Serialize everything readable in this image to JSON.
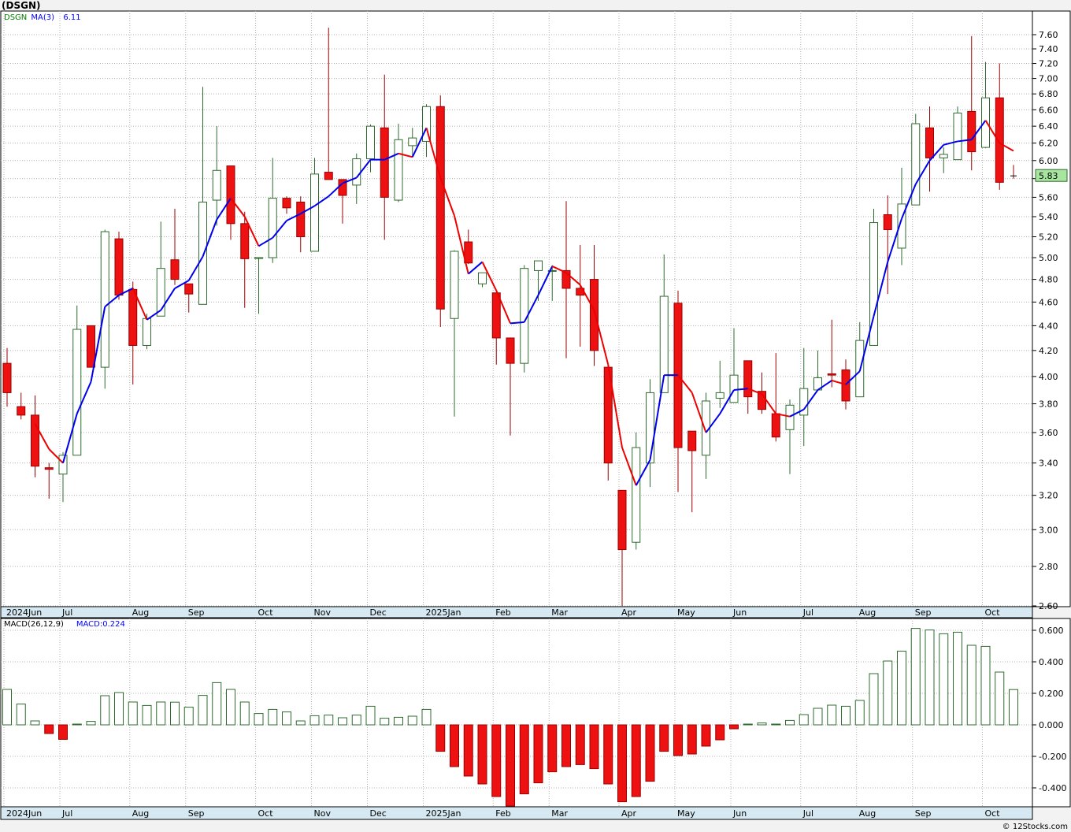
{
  "header": {
    "symbol_title": "(DSGN)",
    "credit": "© 12Stocks.com"
  },
  "chart_data": [
    {
      "type": "candlestick",
      "panel": "price",
      "legend": [
        {
          "text": "DSGN",
          "color": "#008000"
        },
        {
          "text": "MA(3)",
          "color": "#0000ff"
        },
        {
          "text": "6.11",
          "color": "#0000ff"
        }
      ],
      "last_price_label": "5.83",
      "y_ticks": [
        "7.60",
        "7.40",
        "7.20",
        "7.00",
        "6.80",
        "6.60",
        "6.40",
        "6.20",
        "6.00",
        "5.80",
        "5.60",
        "5.40",
        "5.20",
        "5.00",
        "4.80",
        "4.60",
        "4.40",
        "4.20",
        "4.00",
        "3.80",
        "3.60",
        "3.40",
        "3.20",
        "3.00",
        "2.80",
        "2.60"
      ],
      "ylim": [
        2.6,
        7.6
      ],
      "log_scale": true,
      "x_ticks": [
        "2024Jun",
        "Jul",
        "Aug",
        "Sep",
        "Oct",
        "Nov",
        "Dec",
        "2025Jan",
        "Feb",
        "Mar",
        "Apr",
        "May",
        "Jun",
        "Jul",
        "Aug",
        "Sep",
        "Oct"
      ],
      "x_tick_week_index": [
        0,
        4,
        9,
        13,
        18,
        22,
        26,
        30,
        35,
        39,
        44,
        48,
        52,
        57,
        61,
        65,
        70
      ],
      "ohlc": [
        [
          4.1,
          4.22,
          3.78,
          3.88
        ],
        [
          3.78,
          3.88,
          3.69,
          3.72
        ],
        [
          3.72,
          3.86,
          3.31,
          3.38
        ],
        [
          3.37,
          3.4,
          3.18,
          3.36
        ],
        [
          3.33,
          3.47,
          3.16,
          3.45
        ],
        [
          3.45,
          4.57,
          3.45,
          4.37
        ],
        [
          4.4,
          4.4,
          4.07,
          4.07
        ],
        [
          4.07,
          5.27,
          3.91,
          5.25
        ],
        [
          5.18,
          5.25,
          4.62,
          4.66
        ],
        [
          4.71,
          4.78,
          3.94,
          4.24
        ],
        [
          4.24,
          4.5,
          4.21,
          4.46
        ],
        [
          4.48,
          5.35,
          4.48,
          4.9
        ],
        [
          4.98,
          5.48,
          4.75,
          4.8
        ],
        [
          4.76,
          4.76,
          4.51,
          4.67
        ],
        [
          4.58,
          6.89,
          4.58,
          5.55
        ],
        [
          5.57,
          6.4,
          5.31,
          5.89
        ],
        [
          5.94,
          5.94,
          5.17,
          5.33
        ],
        [
          5.33,
          5.45,
          4.55,
          4.99
        ],
        [
          5.0,
          5.0,
          4.5,
          5.0
        ],
        [
          5.0,
          6.03,
          4.95,
          5.59
        ],
        [
          5.59,
          5.61,
          5.43,
          5.49
        ],
        [
          5.55,
          5.61,
          5.05,
          5.2
        ],
        [
          5.06,
          6.03,
          5.06,
          5.85
        ],
        [
          5.87,
          7.7,
          5.8,
          5.79
        ],
        [
          5.79,
          5.79,
          5.33,
          5.62
        ],
        [
          5.73,
          6.08,
          5.53,
          6.02
        ],
        [
          6.02,
          6.42,
          5.87,
          6.4
        ],
        [
          6.38,
          7.05,
          5.17,
          5.6
        ],
        [
          5.57,
          6.43,
          5.55,
          6.24
        ],
        [
          6.17,
          6.38,
          6.04,
          6.26
        ],
        [
          6.22,
          6.67,
          6.04,
          6.64
        ],
        [
          6.64,
          6.78,
          4.39,
          4.54
        ],
        [
          4.46,
          5.07,
          3.71,
          5.06
        ],
        [
          5.15,
          5.27,
          4.94,
          4.95
        ],
        [
          4.76,
          4.86,
          4.73,
          4.86
        ],
        [
          4.68,
          4.68,
          4.09,
          4.3
        ],
        [
          4.3,
          4.3,
          3.58,
          4.1
        ],
        [
          4.1,
          4.93,
          4.03,
          4.9
        ],
        [
          4.88,
          4.96,
          4.61,
          4.97
        ],
        [
          4.88,
          4.93,
          4.61,
          4.88
        ],
        [
          4.88,
          5.56,
          4.14,
          4.72
        ],
        [
          4.72,
          5.12,
          4.23,
          4.66
        ],
        [
          4.8,
          5.12,
          4.08,
          4.2
        ],
        [
          4.07,
          4.08,
          3.29,
          3.4
        ],
        [
          3.23,
          3.23,
          2.6,
          2.89
        ],
        [
          2.93,
          3.6,
          2.89,
          3.5
        ],
        [
          3.4,
          3.98,
          3.25,
          3.88
        ],
        [
          3.88,
          5.03,
          3.9,
          4.65
        ],
        [
          4.59,
          4.7,
          3.22,
          3.5
        ],
        [
          3.61,
          3.61,
          3.1,
          3.48
        ],
        [
          3.45,
          3.88,
          3.3,
          3.82
        ],
        [
          3.84,
          4.12,
          3.77,
          3.88
        ],
        [
          3.81,
          4.38,
          3.81,
          4.01
        ],
        [
          4.12,
          4.12,
          3.73,
          3.85
        ],
        [
          3.89,
          4.03,
          3.73,
          3.76
        ],
        [
          3.73,
          4.18,
          3.54,
          3.57
        ],
        [
          3.62,
          3.83,
          3.33,
          3.79
        ],
        [
          3.72,
          4.22,
          3.51,
          3.91
        ],
        [
          3.9,
          4.2,
          3.9,
          3.99
        ],
        [
          4.02,
          4.45,
          3.92,
          4.01
        ],
        [
          4.05,
          4.13,
          3.76,
          3.82
        ],
        [
          3.85,
          4.43,
          3.85,
          4.28
        ],
        [
          4.24,
          5.48,
          4.24,
          5.34
        ],
        [
          5.42,
          5.62,
          4.67,
          5.27
        ],
        [
          5.09,
          5.92,
          4.93,
          5.53
        ],
        [
          5.52,
          6.55,
          5.52,
          6.43
        ],
        [
          6.38,
          6.64,
          5.66,
          6.03
        ],
        [
          6.03,
          6.15,
          5.86,
          6.07
        ],
        [
          6.01,
          6.64,
          6.01,
          6.56
        ],
        [
          6.58,
          7.58,
          5.89,
          6.1
        ],
        [
          6.15,
          7.22,
          6.14,
          6.75
        ],
        [
          6.75,
          7.2,
          5.68,
          5.76
        ],
        [
          5.85,
          5.95,
          5.8,
          5.83
        ]
      ],
      "ma3": [
        null,
        null,
        3.66,
        3.49,
        3.4,
        3.73,
        3.96,
        4.56,
        4.66,
        4.72,
        4.45,
        4.53,
        4.72,
        4.79,
        5.01,
        5.37,
        5.59,
        5.4,
        5.11,
        5.19,
        5.36,
        5.43,
        5.51,
        5.61,
        5.75,
        5.81,
        6.01,
        6.01,
        6.08,
        6.04,
        6.38,
        5.81,
        5.41,
        4.85,
        4.96,
        4.7,
        4.42,
        4.43,
        4.66,
        4.92,
        4.86,
        4.75,
        4.53,
        4.09,
        3.5,
        3.26,
        3.42,
        4.01,
        4.01,
        3.88,
        3.6,
        3.73,
        3.9,
        3.91,
        3.87,
        3.73,
        3.71,
        3.76,
        3.9,
        3.97,
        3.94,
        4.04,
        4.48,
        4.96,
        5.38,
        5.74,
        6.0,
        6.18,
        6.22,
        6.24,
        6.47,
        6.2,
        6.11
      ]
    },
    {
      "type": "bar",
      "panel": "macd",
      "legend": [
        {
          "text": "MACD(26,12,9)",
          "color": "#000000"
        },
        {
          "text": "MACD:0.224",
          "color": "#0000ff"
        }
      ],
      "y_ticks": [
        "0.600",
        "0.400",
        "0.200",
        "0.000",
        "-0.200",
        "-0.400"
      ],
      "ylim": [
        -0.52,
        0.62
      ],
      "x_ticks": [
        "2024Jun",
        "Jul",
        "Aug",
        "Sep",
        "Oct",
        "Nov",
        "Dec",
        "2025Jan",
        "Feb",
        "Mar",
        "Apr",
        "May",
        "Jun",
        "Jul",
        "Aug",
        "Sep",
        "Oct"
      ],
      "values": [
        0.225,
        0.132,
        0.025,
        -0.055,
        -0.092,
        0.005,
        0.022,
        0.185,
        0.205,
        0.145,
        0.123,
        0.145,
        0.144,
        0.112,
        0.187,
        0.268,
        0.225,
        0.145,
        0.072,
        0.098,
        0.082,
        0.025,
        0.058,
        0.062,
        0.045,
        0.062,
        0.118,
        0.042,
        0.048,
        0.055,
        0.098,
        -0.168,
        -0.265,
        -0.325,
        -0.375,
        -0.455,
        -0.518,
        -0.438,
        -0.368,
        -0.298,
        -0.265,
        -0.252,
        -0.278,
        -0.375,
        -0.488,
        -0.455,
        -0.358,
        -0.168,
        -0.195,
        -0.185,
        -0.135,
        -0.095,
        -0.025,
        0.005,
        0.012,
        0.005,
        0.028,
        0.065,
        0.105,
        0.125,
        0.118,
        0.155,
        0.325,
        0.405,
        0.468,
        0.612,
        0.602,
        0.578,
        0.588,
        0.505,
        0.498,
        0.335,
        0.224
      ]
    }
  ]
}
